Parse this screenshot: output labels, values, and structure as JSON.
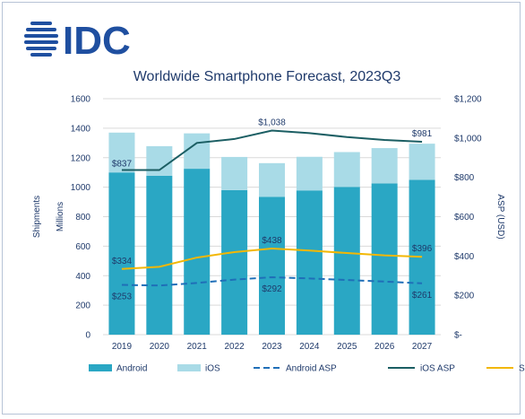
{
  "brand": {
    "logo_text": "IDC",
    "logo_color": "#1f4fa0"
  },
  "chart_data": {
    "type": "bar",
    "title": "Worldwide Smartphone Forecast, 2023Q3",
    "categories": [
      "2019",
      "2020",
      "2021",
      "2022",
      "2023",
      "2024",
      "2025",
      "2026",
      "2027"
    ],
    "stacked": true,
    "ylabel_left": [
      "Shipments",
      "Millions"
    ],
    "ylabel_right": "ASP (USD)",
    "ylim_left": [
      0,
      1600
    ],
    "ylim_right": [
      0,
      1200
    ],
    "yticks_left": [
      "0",
      "200",
      "400",
      "600",
      "800",
      "1000",
      "1200",
      "1400",
      "1600"
    ],
    "yticks_right": [
      "$-",
      "$200",
      "$400",
      "$600",
      "$800",
      "$1,000",
      "$1,200"
    ],
    "grid": true,
    "legend_position": "bottom",
    "series": [
      {
        "name": "Android",
        "kind": "bar",
        "axis": "left",
        "color": "#2aa7c4",
        "values": [
          1100,
          1078,
          1125,
          980,
          935,
          978,
          1002,
          1025,
          1050
        ]
      },
      {
        "name": "iOS",
        "kind": "bar",
        "axis": "left",
        "color": "#a9dbe7",
        "values": [
          270,
          200,
          240,
          225,
          228,
          228,
          236,
          240,
          245
        ]
      },
      {
        "name": "Android ASP",
        "kind": "line",
        "dash": true,
        "axis": "right",
        "color": "#1f6fb8",
        "values": [
          253,
          250,
          263,
          280,
          292,
          286,
          278,
          270,
          261
        ]
      },
      {
        "name": "iOS ASP",
        "kind": "line",
        "axis": "right",
        "color": "#1b5e63",
        "values": [
          837,
          837,
          975,
          995,
          1038,
          1025,
          1005,
          990,
          981
        ]
      },
      {
        "name": "SP ASP",
        "kind": "line",
        "axis": "right",
        "color": "#f2b705",
        "values": [
          334,
          345,
          392,
          420,
          438,
          428,
          415,
          403,
          396
        ]
      }
    ],
    "data_labels": [
      {
        "series": "iOS ASP",
        "index": 0,
        "text": "$837"
      },
      {
        "series": "iOS ASP",
        "index": 4,
        "text": "$1,038"
      },
      {
        "series": "iOS ASP",
        "index": 8,
        "text": "$981"
      },
      {
        "series": "SP ASP",
        "index": 0,
        "text": "$334"
      },
      {
        "series": "SP ASP",
        "index": 4,
        "text": "$438"
      },
      {
        "series": "SP ASP",
        "index": 8,
        "text": "$396"
      },
      {
        "series": "Android ASP",
        "index": 0,
        "text": "$253"
      },
      {
        "series": "Android ASP",
        "index": 4,
        "text": "$292"
      },
      {
        "series": "Android ASP",
        "index": 8,
        "text": "$261"
      }
    ]
  }
}
